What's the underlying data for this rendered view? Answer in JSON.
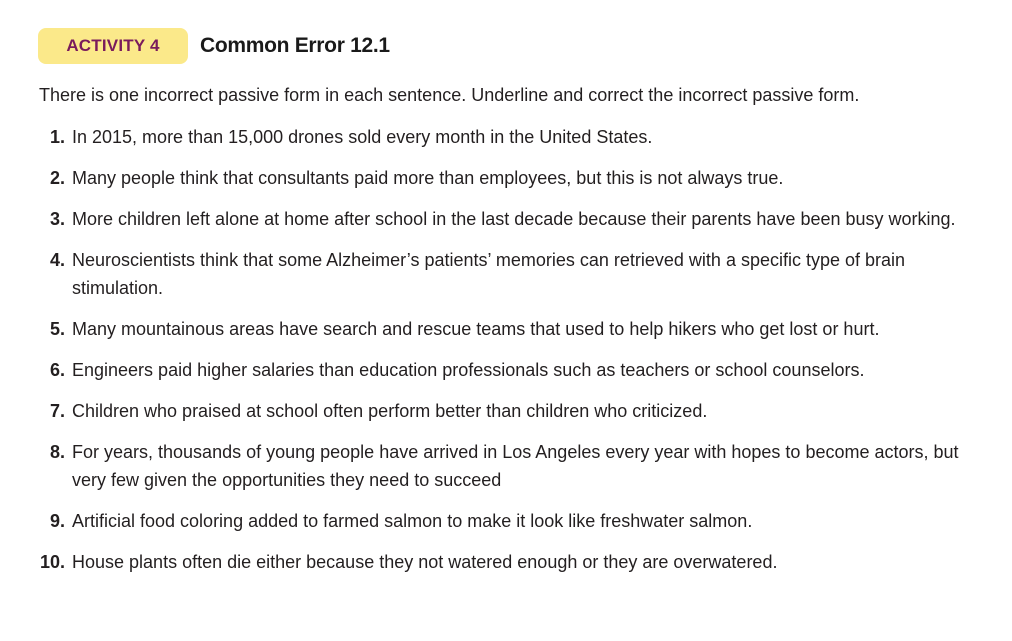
{
  "header": {
    "badge_label": "ACTIVITY 4",
    "title": "Common Error 12.1"
  },
  "instructions": "There is one incorrect passive form in each sentence. Underline and correct the incorrect passive form.",
  "items": [
    {
      "number": "1.",
      "text": "In 2015, more than 15,000 drones sold every month in the United States."
    },
    {
      "number": "2.",
      "text": "Many people think that consultants paid more than employees, but this is not always true."
    },
    {
      "number": "3.",
      "text": "More children left alone at home after school in the last decade because their parents have been busy working."
    },
    {
      "number": "4.",
      "text": "Neuroscientists think that some Alzheimer’s patients’ memories can retrieved with a specific type of brain stimulation."
    },
    {
      "number": "5.",
      "text": "Many mountainous areas have search and rescue teams that used to help hikers who get lost or hurt."
    },
    {
      "number": "6.",
      "text": "Engineers paid higher salaries than education professionals such as teachers or school counselors."
    },
    {
      "number": "7.",
      "text": "Children who praised at school often perform better than children who criticized."
    },
    {
      "number": "8.",
      "text": "For years, thousands of young people have arrived in Los Angeles every year with hopes to become actors, but very few given the opportunities they need to succeed"
    },
    {
      "number": "9.",
      "text": "Artificial food coloring added to farmed salmon to make it look like freshwater salmon."
    },
    {
      "number": "10.",
      "text": "House plants often die either because they not watered enough or they are overwatered."
    }
  ]
}
